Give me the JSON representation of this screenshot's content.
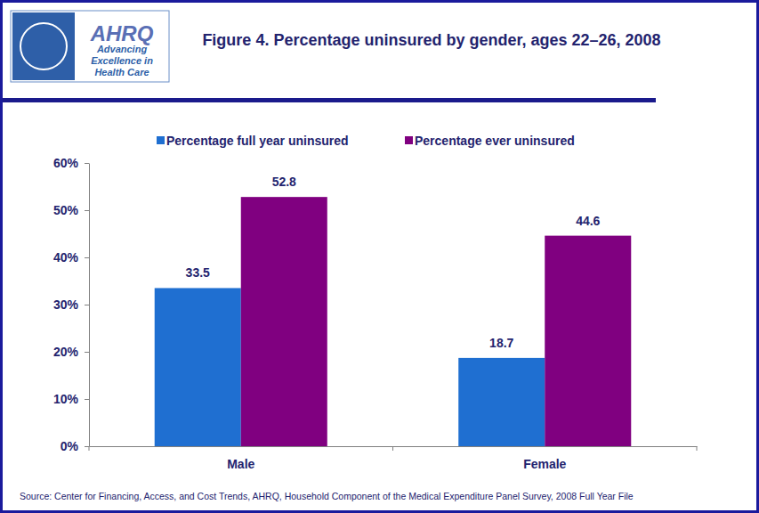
{
  "chart_data": {
    "type": "bar",
    "title": "Figure 4. Percentage uninsured by gender, ages 22–26, 2008",
    "categories": [
      "Male",
      "Female"
    ],
    "series": [
      {
        "name": "Percentage full year uninsured",
        "color": "#1f6fd1",
        "values": [
          33.5,
          18.7
        ]
      },
      {
        "name": "Percentage ever uninsured",
        "color": "#800080",
        "values": [
          52.8,
          44.6
        ]
      }
    ],
    "ylim": [
      0,
      60
    ],
    "yticks": [
      {
        "value": 0,
        "label": "0%"
      },
      {
        "value": 10,
        "label": "10%"
      },
      {
        "value": 20,
        "label": "20%"
      },
      {
        "value": 30,
        "label": "30%"
      },
      {
        "value": 40,
        "label": "40%"
      },
      {
        "value": 50,
        "label": "50%"
      },
      {
        "value": 60,
        "label": "60%"
      }
    ],
    "grid": false,
    "legend": "top",
    "data_labels": true,
    "annotations": [
      "AHRQ",
      "Advancing",
      "Excellence in",
      "Health Care",
      "Source: Center for Financing, Access, and Cost Trends, AHRQ, Household Component of the Medical Expenditure Panel Survey, 2008 Full Year File"
    ]
  }
}
